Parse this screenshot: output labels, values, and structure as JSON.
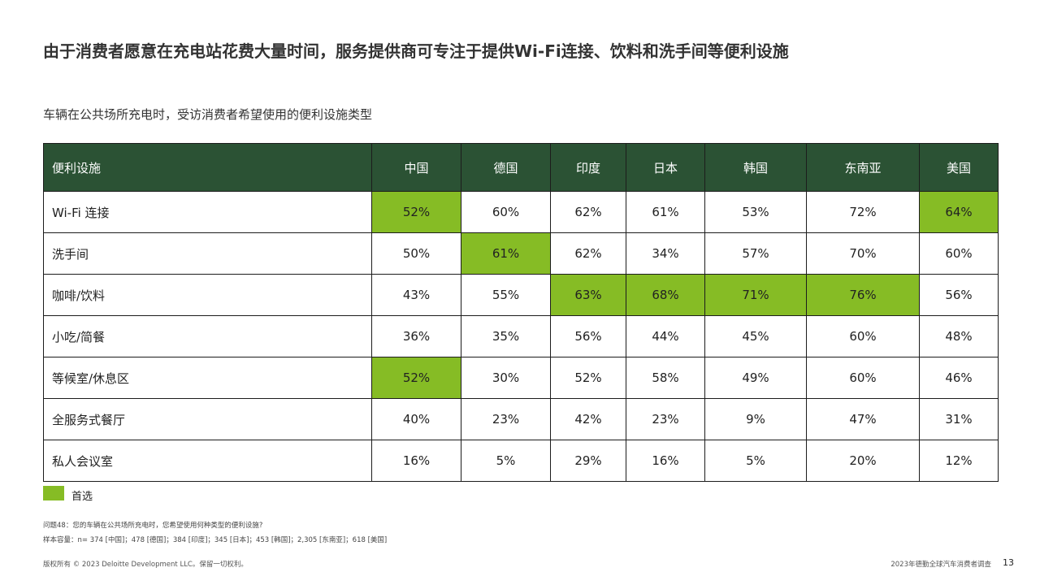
{
  "header": {
    "title": "由于消费者愿意在充电站花费大量时间，服务提供商可专注于提供Wi-Fi连接、饮料和洗手间等便利设施",
    "subtitle": "车辆在公共场所充电时，受访消费者希望使用的便利设施类型"
  },
  "table": {
    "columns": [
      "便利设施",
      "中国",
      "德国",
      "印度",
      "日本",
      "韩国",
      "东南亚",
      "美国"
    ],
    "rows": [
      {
        "label": "Wi-Fi 连接",
        "values": [
          "52%",
          "60%",
          "62%",
          "61%",
          "53%",
          "72%",
          "64%"
        ],
        "preferred": [
          true,
          false,
          false,
          false,
          false,
          false,
          true
        ]
      },
      {
        "label": "洗手间",
        "values": [
          "50%",
          "61%",
          "62%",
          "34%",
          "57%",
          "70%",
          "60%"
        ],
        "preferred": [
          false,
          true,
          false,
          false,
          false,
          false,
          false
        ]
      },
      {
        "label": "咖啡/饮料",
        "values": [
          "43%",
          "55%",
          "63%",
          "68%",
          "71%",
          "76%",
          "56%"
        ],
        "preferred": [
          false,
          false,
          true,
          true,
          true,
          true,
          false
        ]
      },
      {
        "label": "小吃/简餐",
        "values": [
          "36%",
          "35%",
          "56%",
          "44%",
          "45%",
          "60%",
          "48%"
        ],
        "preferred": [
          false,
          false,
          false,
          false,
          false,
          false,
          false
        ]
      },
      {
        "label": "等候室/休息区",
        "values": [
          "52%",
          "30%",
          "52%",
          "58%",
          "49%",
          "60%",
          "46%"
        ],
        "preferred": [
          true,
          false,
          false,
          false,
          false,
          false,
          false
        ]
      },
      {
        "label": "全服务式餐厅",
        "values": [
          "40%",
          "23%",
          "42%",
          "23%",
          "9%",
          "47%",
          "31%"
        ],
        "preferred": [
          false,
          false,
          false,
          false,
          false,
          false,
          false
        ]
      },
      {
        "label": "私人会议室",
        "values": [
          "16%",
          "5%",
          "29%",
          "16%",
          "5%",
          "20%",
          "12%"
        ],
        "preferred": [
          false,
          false,
          false,
          false,
          false,
          false,
          false
        ]
      }
    ],
    "header_color": "#2b5234",
    "highlight_color": "#86bc25"
  },
  "legend": {
    "label": "首选"
  },
  "notes": [
    "问题48：您的车辆在公共场所充电时，您希望使用何种类型的便利设施?",
    "样本容量：n= 374 [中国]；478 [德国]；384 [印度]；345 [日本]；453 [韩国]；2,305 [东南亚]；618 [美国]"
  ],
  "footer": {
    "copyright": "版权所有 © 2023 Deloitte Development LLC。保留一切权利。",
    "source": "2023年德勤全球汽车消费者调查",
    "page": "13"
  }
}
